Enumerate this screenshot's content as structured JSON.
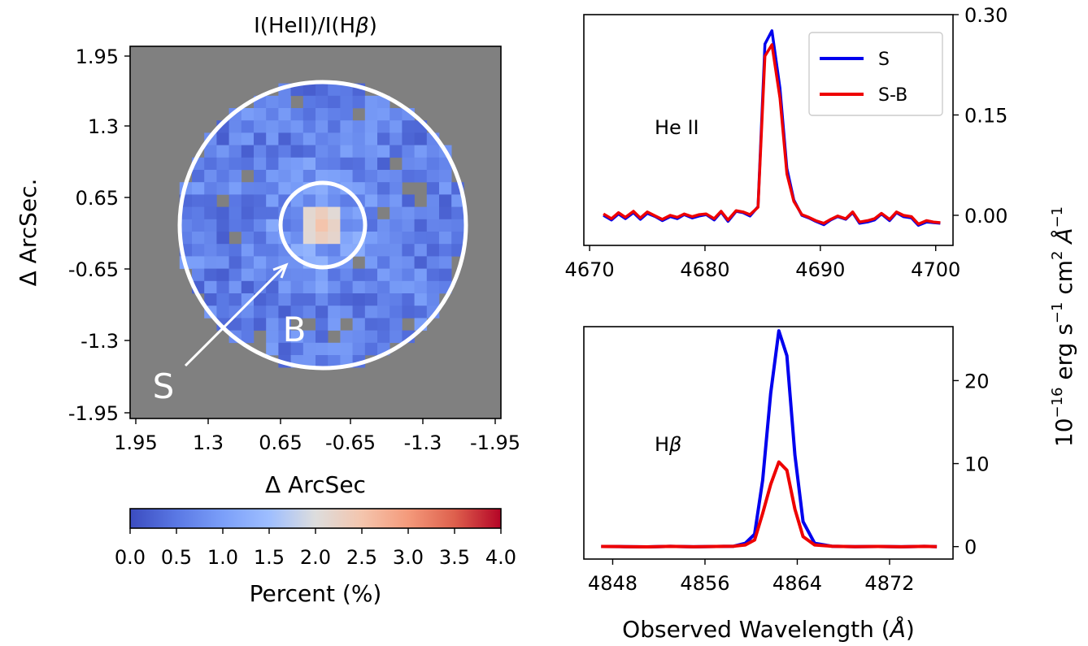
{
  "chart_data": [
    {
      "type": "heatmap",
      "title": "I(HeII)/I(Hβ)",
      "title_parts": {
        "a": "I(HeII)/I(H",
        "b": "β",
        "c": ")"
      },
      "xlabel": "Δ ArcSec",
      "ylabel": "Δ ArcSec.",
      "x_ticks": [
        "1.95",
        "1.3",
        "0.65",
        "-0.65",
        "-1.3",
        "-1.95"
      ],
      "y_ticks": [
        "1.95",
        "1.3",
        "0.65",
        "-0.65",
        "-1.3",
        "-1.95"
      ],
      "background_color": "#808080",
      "colormap": "coolwarm",
      "colorbar": {
        "label": "Percent (%)",
        "range": [
          0.0,
          4.0
        ],
        "ticks": [
          "0.0",
          "0.5",
          "1.0",
          "1.5",
          "2.0",
          "2.5",
          "3.0",
          "3.5",
          "4.0"
        ]
      },
      "annotations": {
        "inner_aperture_label": "S",
        "annulus_label": "B"
      },
      "notes": {
        "center_value_approx": 2.2,
        "background_value_approx": 0.5
      }
    },
    {
      "type": "line",
      "label": "He II",
      "xlim": [
        4669.5,
        4701.5
      ],
      "ylim": [
        -0.045,
        0.3
      ],
      "x_ticks": [
        "4670",
        "4680",
        "4690",
        "4700"
      ],
      "y_ticks": [
        "0.00",
        "0.15",
        "0.30"
      ],
      "legend": {
        "position": "upper right",
        "entries": [
          "S",
          "S-B"
        ]
      },
      "series_colors": {
        "S": "#0000ee",
        "S-B": "#ee0000"
      },
      "x": [
        4671.2,
        4671.9,
        4672.5,
        4673.1,
        4673.8,
        4674.4,
        4675.0,
        4675.7,
        4676.3,
        4677.0,
        4677.6,
        4678.2,
        4678.9,
        4679.5,
        4680.1,
        4680.8,
        4681.4,
        4682.0,
        4682.7,
        4683.3,
        4683.9,
        4684.6,
        4685.2,
        4685.8,
        4686.5,
        4687.1,
        4687.7,
        4688.4,
        4689.0,
        4689.6,
        4690.3,
        4690.9,
        4691.5,
        4692.2,
        4692.8,
        4693.4,
        4694.1,
        4694.7,
        4695.3,
        4696.0,
        4696.6,
        4697.2,
        4697.9,
        4698.5,
        4699.2,
        4699.8,
        4700.4
      ],
      "series": [
        {
          "name": "S",
          "values": [
            0.0,
            -0.007,
            0.002,
            -0.005,
            0.004,
            -0.006,
            0.003,
            -0.002,
            -0.008,
            -0.002,
            -0.005,
            0.001,
            -0.004,
            -0.001,
            0.001,
            -0.007,
            0.005,
            -0.009,
            0.006,
            0.004,
            -0.001,
            0.013,
            0.256,
            0.276,
            0.19,
            0.07,
            0.023,
            0.0,
            -0.004,
            -0.009,
            -0.014,
            -0.007,
            -0.002,
            -0.006,
            0.004,
            -0.012,
            -0.01,
            -0.007,
            0.002,
            -0.008,
            0.004,
            -0.002,
            -0.004,
            -0.015,
            -0.01,
            -0.011,
            -0.012
          ]
        },
        {
          "name": "S-B",
          "values": [
            0.002,
            -0.005,
            0.004,
            -0.003,
            0.006,
            -0.004,
            0.005,
            -0.001,
            -0.006,
            0.0,
            -0.003,
            0.002,
            -0.002,
            0.001,
            0.002,
            -0.005,
            0.006,
            -0.007,
            0.007,
            0.005,
            0.001,
            0.012,
            0.238,
            0.255,
            0.175,
            0.062,
            0.021,
            0.001,
            -0.003,
            -0.008,
            -0.012,
            -0.006,
            -0.001,
            -0.005,
            0.005,
            -0.01,
            -0.008,
            -0.005,
            0.003,
            -0.006,
            0.005,
            0.0,
            -0.002,
            -0.013,
            -0.008,
            -0.01,
            -0.011
          ]
        }
      ]
    },
    {
      "type": "line",
      "label": "Hβ",
      "label_parts": {
        "a": "H",
        "b": "β"
      },
      "xlim": [
        4845.5,
        4877.5
      ],
      "ylim": [
        -1.5,
        26.5
      ],
      "x_ticks": [
        "4848",
        "4856",
        "4864",
        "4872"
      ],
      "y_ticks": [
        "0",
        "10",
        "20"
      ],
      "series_colors": {
        "S": "#0000ee",
        "S-B": "#ee0000"
      },
      "x": [
        4847.0,
        4849.0,
        4851.0,
        4853.0,
        4855.0,
        4857.0,
        4858.5,
        4859.5,
        4860.3,
        4861.0,
        4861.7,
        4862.4,
        4863.1,
        4863.8,
        4864.5,
        4865.5,
        4867.0,
        4869.0,
        4871.0,
        4873.0,
        4875.0,
        4876.1
      ],
      "series": [
        {
          "name": "S",
          "values": [
            0.02,
            0.0,
            -0.03,
            0.03,
            -0.02,
            0.02,
            0.05,
            0.4,
            1.5,
            8.0,
            18.5,
            26.0,
            23.0,
            11.0,
            3.0,
            0.4,
            0.05,
            0.0,
            0.02,
            -0.02,
            0.03,
            0.0
          ]
        },
        {
          "name": "S-B",
          "values": [
            0.02,
            0.0,
            -0.03,
            0.03,
            -0.02,
            0.02,
            0.05,
            0.2,
            0.8,
            4.0,
            7.5,
            10.2,
            9.2,
            4.5,
            1.2,
            0.2,
            0.05,
            0.0,
            0.02,
            -0.02,
            0.03,
            0.0
          ]
        }
      ]
    }
  ],
  "shared_ylabel": {
    "prefix": "10",
    "exp1": "−16",
    "mid": " erg s",
    "exp2": "−1",
    "mid2": " cm",
    "exp3": "2",
    "angstrom": "Å",
    "exp4": "−1"
  },
  "shared_xlabel": {
    "text": "Observed Wavelength (",
    "angstrom": "Å",
    "close": ")"
  }
}
